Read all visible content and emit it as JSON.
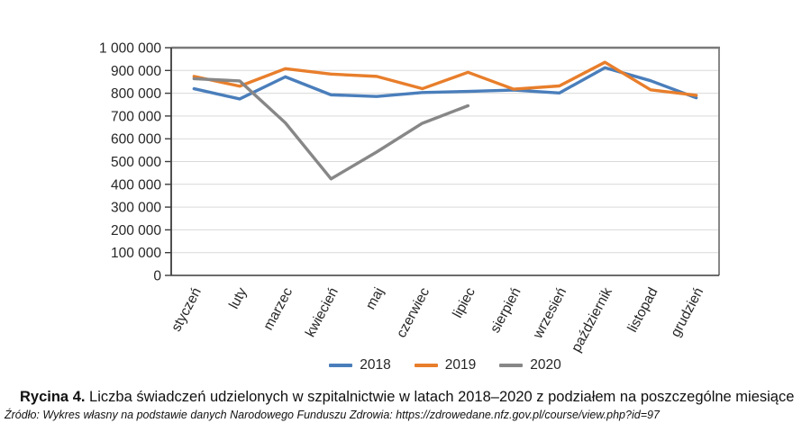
{
  "figure": {
    "caption": {
      "label": "Rycina 4.",
      "text": " Liczba świadczeń udzielonych w szpitalnictwie w latach 2018–2020 z podziałem na poszczególne miesiące"
    },
    "source": "Źródło: Wykres własny na podstawie danych Narodowego Funduszu Zdrowia: https://zdrowedane.nfz.gov.pl/course/view.php?id=97"
  },
  "chart_data": {
    "type": "line",
    "title": "",
    "xlabel": "",
    "ylabel": "",
    "categories": [
      "styczeń",
      "luty",
      "marzec",
      "kwiecień",
      "maj",
      "czerwiec",
      "lipiec",
      "sierpień",
      "wrzesień",
      "październik",
      "listopad",
      "grudzień"
    ],
    "series": [
      {
        "name": "2018",
        "color": "#4a7ebb",
        "values": [
          820000,
          775000,
          872000,
          793000,
          786000,
          803000,
          808000,
          814000,
          801000,
          912000,
          855000,
          780000
        ]
      },
      {
        "name": "2019",
        "color": "#e87e2b",
        "values": [
          874000,
          831000,
          908000,
          884000,
          874000,
          820000,
          892000,
          818000,
          832000,
          936000,
          815000,
          791000
        ]
      },
      {
        "name": "2020",
        "color": "#878787",
        "values": [
          864000,
          854000,
          670000,
          424000,
          542000,
          668000,
          745000,
          null,
          null,
          null,
          null,
          null
        ]
      }
    ],
    "ylim": [
      0,
      1000000
    ],
    "ytick_step": 100000,
    "ytick_labels": [
      "0",
      "100 000",
      "200 000",
      "300 000",
      "400 000",
      "500 000",
      "600 000",
      "700 000",
      "800 000",
      "900 000",
      "1 000 000"
    ],
    "grid": true,
    "legend_position": "bottom",
    "colors": {
      "gridline": "#d9d9d9",
      "plot_border": "#7a7a7a",
      "axis": "#3c3c3c",
      "text": "#262626"
    }
  }
}
